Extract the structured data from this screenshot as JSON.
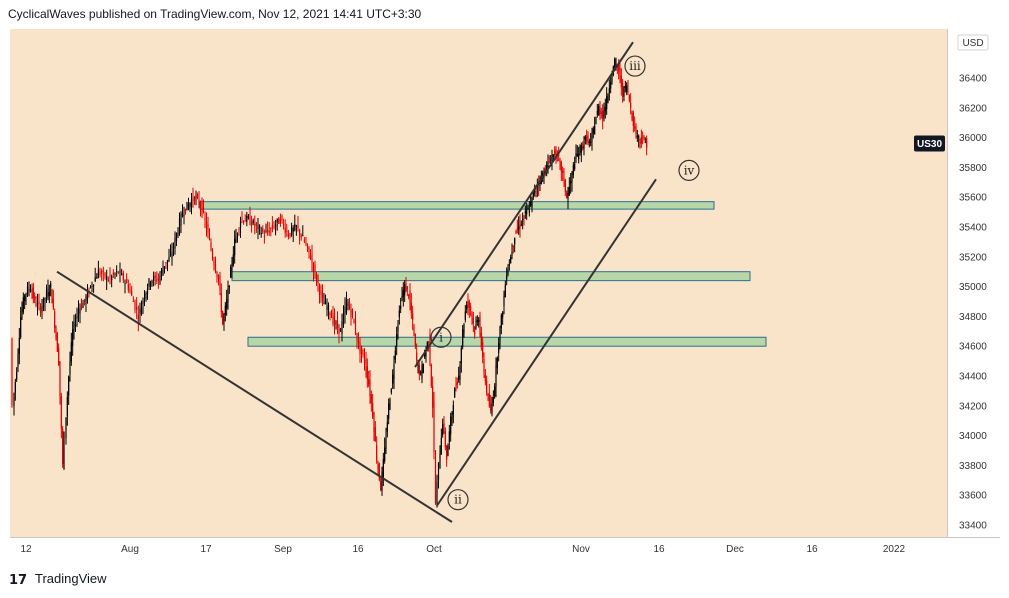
{
  "header": {
    "text": "CyclicalWaves published on TradingView.com, Nov 12, 2021 14:41 UTC+3:30"
  },
  "footer": {
    "logo_mark": "17",
    "brand": "TradingView"
  },
  "chart_data": {
    "type": "candlestick",
    "symbol_badge": "US30",
    "currency": "USD",
    "last_price": 35960,
    "colors": {
      "background": "#f9e3c9",
      "up": "#000000",
      "down": "#e00000",
      "zone_fill": "#b7d7a8",
      "zone_border": "#2b6f8f",
      "line": "#333333",
      "badge": "#131722"
    },
    "x_ticks": [
      "12",
      "Aug",
      "17",
      "Sep",
      "16",
      "Oct",
      "Nov",
      "16",
      "Dec",
      "16",
      "2022"
    ],
    "y_ticks": [
      33400,
      33600,
      33800,
      34000,
      34200,
      34400,
      34600,
      34800,
      35000,
      35200,
      35400,
      35600,
      35800,
      36000,
      36200,
      36400
    ],
    "ylim": [
      33330,
      36650
    ],
    "support_resistance_zones": [
      {
        "low": 35520,
        "high": 35570
      },
      {
        "low": 35040,
        "high": 35100
      },
      {
        "low": 34600,
        "high": 34660
      }
    ],
    "wave_labels": [
      {
        "label": "i",
        "price": 34660
      },
      {
        "label": "ii",
        "price": 33570
      },
      {
        "label": "iii",
        "price": 36480
      },
      {
        "label": "iv",
        "price": 35780
      }
    ],
    "price_path": [
      [
        12,
        34650
      ],
      [
        14,
        34200
      ],
      [
        18,
        34450
      ],
      [
        22,
        34800
      ],
      [
        26,
        34950
      ],
      [
        32,
        35000
      ],
      [
        36,
        34900
      ],
      [
        42,
        34850
      ],
      [
        48,
        34950
      ],
      [
        52,
        35000
      ],
      [
        56,
        34750
      ],
      [
        60,
        34500
      ],
      [
        64,
        33800
      ],
      [
        66,
        34000
      ],
      [
        70,
        34400
      ],
      [
        74,
        34700
      ],
      [
        80,
        34850
      ],
      [
        86,
        34900
      ],
      [
        92,
        35000
      ],
      [
        100,
        35100
      ],
      [
        110,
        35050
      ],
      [
        120,
        35100
      ],
      [
        130,
        35000
      ],
      [
        140,
        34800
      ],
      [
        146,
        34950
      ],
      [
        152,
        35050
      ],
      [
        160,
        35050
      ],
      [
        166,
        35150
      ],
      [
        172,
        35200
      ],
      [
        178,
        35350
      ],
      [
        184,
        35500
      ],
      [
        190,
        35550
      ],
      [
        196,
        35600
      ],
      [
        202,
        35550
      ],
      [
        208,
        35400
      ],
      [
        214,
        35200
      ],
      [
        220,
        35050
      ],
      [
        224,
        34750
      ],
      [
        228,
        34900
      ],
      [
        232,
        35100
      ],
      [
        236,
        35300
      ],
      [
        242,
        35450
      ],
      [
        250,
        35450
      ],
      [
        258,
        35400
      ],
      [
        266,
        35350
      ],
      [
        274,
        35400
      ],
      [
        282,
        35450
      ],
      [
        290,
        35350
      ],
      [
        298,
        35400
      ],
      [
        306,
        35300
      ],
      [
        312,
        35200
      ],
      [
        318,
        35050
      ],
      [
        324,
        34900
      ],
      [
        330,
        34850
      ],
      [
        336,
        34750
      ],
      [
        342,
        34700
      ],
      [
        348,
        34900
      ],
      [
        354,
        34800
      ],
      [
        360,
        34600
      ],
      [
        366,
        34500
      ],
      [
        370,
        34350
      ],
      [
        374,
        34150
      ],
      [
        378,
        33850
      ],
      [
        382,
        33650
      ],
      [
        386,
        33900
      ],
      [
        390,
        34200
      ],
      [
        394,
        34400
      ],
      [
        398,
        34700
      ],
      [
        402,
        34900
      ],
      [
        406,
        35000
      ],
      [
        410,
        34950
      ],
      [
        414,
        34750
      ],
      [
        418,
        34500
      ],
      [
        422,
        34400
      ],
      [
        426,
        34550
      ],
      [
        430,
        34650
      ],
      [
        434,
        34200
      ],
      [
        437,
        33550
      ],
      [
        440,
        33800
      ],
      [
        444,
        34100
      ],
      [
        448,
        33850
      ],
      [
        452,
        34100
      ],
      [
        456,
        34300
      ],
      [
        460,
        34400
      ],
      [
        464,
        34700
      ],
      [
        468,
        34900
      ],
      [
        472,
        34850
      ],
      [
        476,
        34700
      ],
      [
        480,
        34800
      ],
      [
        484,
        34500
      ],
      [
        488,
        34300
      ],
      [
        492,
        34150
      ],
      [
        496,
        34350
      ],
      [
        500,
        34650
      ],
      [
        504,
        34850
      ],
      [
        508,
        35100
      ],
      [
        512,
        35200
      ],
      [
        516,
        35350
      ],
      [
        520,
        35400
      ],
      [
        524,
        35450
      ],
      [
        528,
        35500
      ],
      [
        532,
        35550
      ],
      [
        536,
        35650
      ],
      [
        540,
        35700
      ],
      [
        544,
        35750
      ],
      [
        548,
        35800
      ],
      [
        552,
        35850
      ],
      [
        556,
        35900
      ],
      [
        560,
        35850
      ],
      [
        564,
        35750
      ],
      [
        568,
        35600
      ],
      [
        572,
        35700
      ],
      [
        576,
        35850
      ],
      [
        580,
        35900
      ],
      [
        584,
        35950
      ],
      [
        588,
        36000
      ],
      [
        592,
        35950
      ],
      [
        596,
        36100
      ],
      [
        600,
        36200
      ],
      [
        604,
        36150
      ],
      [
        608,
        36250
      ],
      [
        612,
        36400
      ],
      [
        616,
        36500
      ],
      [
        620,
        36450
      ],
      [
        624,
        36300
      ],
      [
        628,
        36350
      ],
      [
        632,
        36200
      ],
      [
        636,
        36050
      ],
      [
        640,
        36000
      ],
      [
        644,
        35980
      ],
      [
        648,
        35960
      ]
    ],
    "trend_lines": [
      [
        [
          57,
          35100
        ],
        [
          452,
          33420
        ]
      ],
      [
        [
          437,
          33530
        ],
        [
          656,
          35720
        ]
      ],
      [
        [
          415,
          34460
        ],
        [
          633,
          36640
        ]
      ]
    ]
  }
}
